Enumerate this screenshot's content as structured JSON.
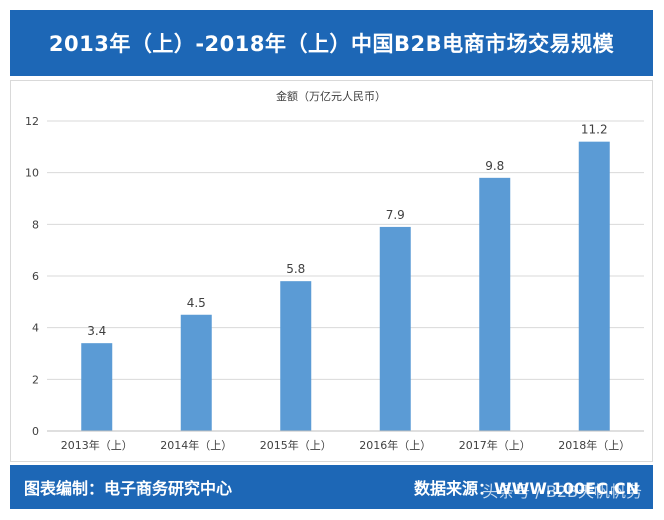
{
  "header": {
    "title": "2013年（上）-2018年（上）中国B2B电商市场交易规模"
  },
  "chart_data": {
    "type": "bar",
    "title": "2013年（上）-2018年（上）中国B2B电商市场交易规模",
    "ylabel": "金额（万亿元人民币）",
    "xlabel": "",
    "categories": [
      "2013年（上）",
      "2014年（上）",
      "2015年（上）",
      "2016年（上）",
      "2017年（上）",
      "2018年（上）"
    ],
    "values": [
      3.4,
      4.5,
      5.8,
      7.9,
      9.8,
      11.2
    ],
    "value_labels": [
      "3.4",
      "4.5",
      "5.8",
      "7.9",
      "9.8",
      "11.2"
    ],
    "ylim": [
      0,
      12
    ],
    "yticks": [
      0,
      2,
      4,
      6,
      8,
      10,
      12
    ],
    "grid": true,
    "bar_color": "#5b9bd5"
  },
  "footer": {
    "left": "图表编制：电子商务研究中心",
    "right": "数据来源：WWW.100EC.CN",
    "watermark": "头条号 / B2B天帆帆务"
  },
  "colors": {
    "brand": "#1d67b6",
    "bar": "#5b9bd5",
    "grid": "#d9d9d9",
    "text": "#404040"
  }
}
